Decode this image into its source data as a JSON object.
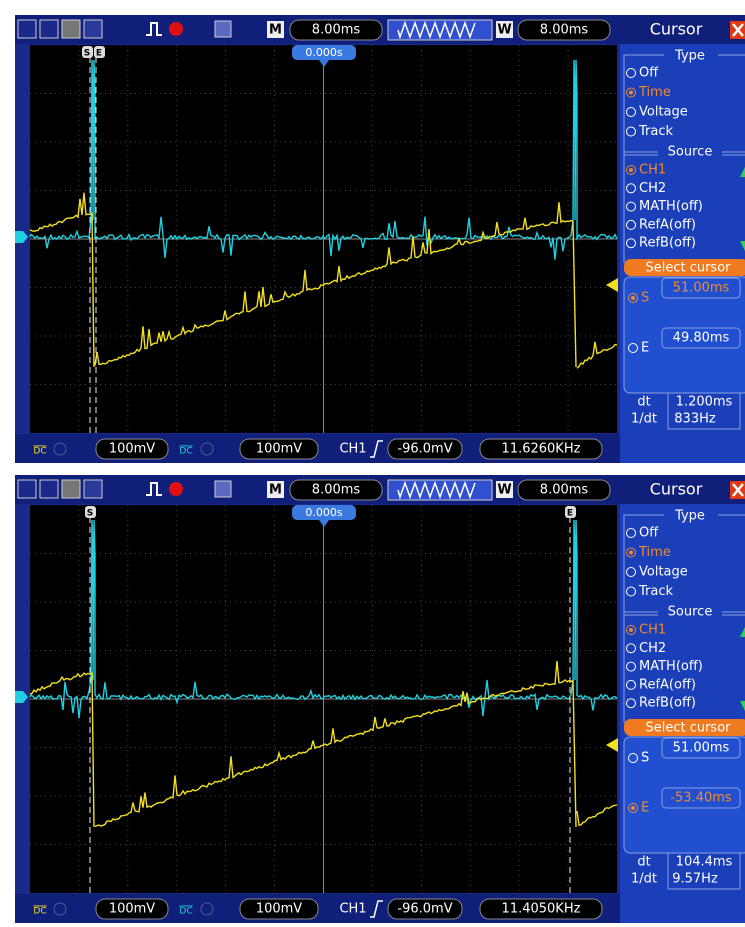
{
  "screens": [
    {
      "toolbar": {
        "m": "M",
        "timebase": "8.00ms",
        "w": "W",
        "window": "8.00ms"
      },
      "trigger_position": "0.000s",
      "cursor_labels": [
        "S",
        "E"
      ],
      "menu": {
        "title": "Cursor",
        "type_heading": "Type",
        "type_options": [
          "Off",
          "Time",
          "Voltage",
          "Track"
        ],
        "source_heading": "Source",
        "source_options": [
          "CH1",
          "CH2",
          "MATH(off)",
          "RefA(off)",
          "RefB(off)"
        ],
        "select": "Select cursor",
        "start_label": "S",
        "start": "51.00ms",
        "end_label": "E",
        "end": "49.80ms",
        "dt_label": "dt",
        "dt": "1.200ms",
        "inv_label": "1/dt",
        "inv": "833Hz"
      },
      "status": {
        "ch1_coupling": "DC",
        "ch1_scale": "100mV",
        "ch2_coupling": "DC",
        "ch2_scale": "100mV",
        "trigger_source": "CH1",
        "trigger_level": "-96.0mV",
        "frequency": "11.6260KHz"
      }
    },
    {
      "toolbar": {
        "m": "M",
        "timebase": "8.00ms",
        "w": "W",
        "window": "8.00ms"
      },
      "trigger_position": "0.000s",
      "cursor_labels": [
        "S",
        "E"
      ],
      "menu": {
        "title": "Cursor",
        "type_heading": "Type",
        "type_options": [
          "Off",
          "Time",
          "Voltage",
          "Track"
        ],
        "source_heading": "Source",
        "source_options": [
          "CH1",
          "CH2",
          "MATH(off)",
          "RefA(off)",
          "RefB(off)"
        ],
        "select": "Select cursor",
        "start_label": "S",
        "start": "51.00ms",
        "end_label": "E",
        "end": "-53.40ms",
        "dt_label": "dt",
        "dt": "104.4ms",
        "inv_label": "1/dt",
        "inv": "9.57Hz"
      },
      "status": {
        "ch1_coupling": "DC",
        "ch1_scale": "100mV",
        "ch2_coupling": "DC",
        "ch2_scale": "100mV",
        "trigger_source": "CH1",
        "trigger_level": "-96.0mV",
        "frequency": "11.4050KHz"
      }
    }
  ]
}
